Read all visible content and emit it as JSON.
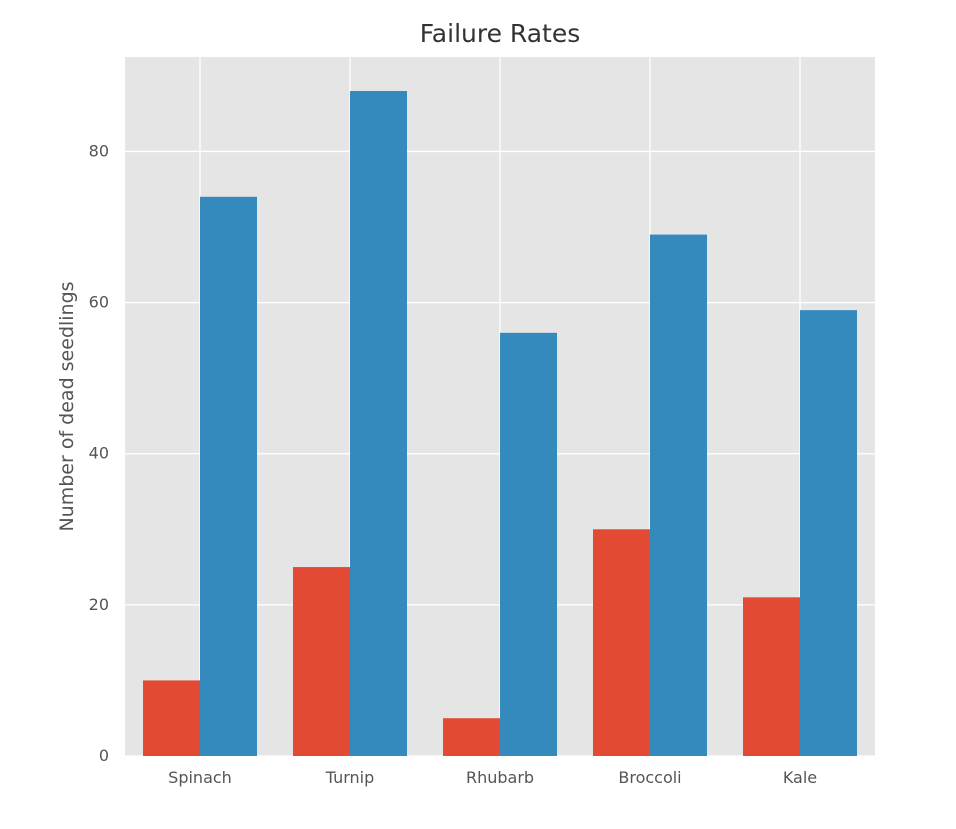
{
  "chart_data": {
    "type": "bar",
    "title": "Failure Rates",
    "xlabel": "",
    "ylabel": "Number of dead seedlings",
    "categories": [
      "Spinach",
      "Turnip",
      "Rhubarb",
      "Broccoli",
      "Kale"
    ],
    "series": [
      {
        "values": [
          10,
          25,
          5,
          30,
          21
        ],
        "color": "#E24A33"
      },
      {
        "values": [
          74,
          88,
          56,
          69,
          59
        ],
        "color": "#348ABD"
      }
    ],
    "ylim": [
      0,
      92.5
    ],
    "yticks": [
      0,
      20,
      40,
      60,
      80
    ],
    "grid": true,
    "background": "#E5E5E5",
    "grid_color": "#FFFFFF"
  }
}
